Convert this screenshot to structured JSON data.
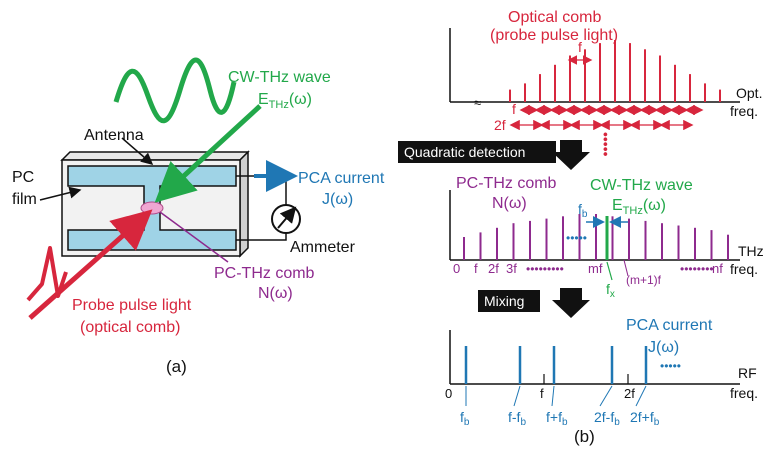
{
  "colors": {
    "optical": "#d7263d",
    "thz": "#22a84a",
    "pca": "#1f77b4",
    "pc_comb": "#8e2a8e",
    "device": "#9fd3e6",
    "gap": "#f0a6d2"
  },
  "panel_a": {
    "label": "(a)",
    "cw_label": "CW-THz wave",
    "e_symbol": "E",
    "e_sub": "THz",
    "e_arg": "(ω)",
    "antenna": "Antenna",
    "pc_film_line1": "PC",
    "pc_film_line2": "film",
    "pca_current": "PCA current",
    "j_omega": "J(ω)",
    "ammeter": "Ammeter",
    "pc_comb": "PC-THz comb",
    "n_omega": "N(ω)",
    "probe_line1": "Probe pulse light",
    "probe_line2": "(optical comb)"
  },
  "panel_b": {
    "label": "(b)",
    "quadratic": "Quadratic detection",
    "mixing": "Mixing",
    "top": {
      "title1": "Optical comb",
      "title2": "(probe pulse light)",
      "f": "f",
      "f_row": "f",
      "two_f": "2f",
      "axis1": "Opt.",
      "axis2": "freq."
    },
    "mid": {
      "title1": "PC-THz comb",
      "title2": "N(ω)",
      "cw1": "CW-THz wave",
      "e_symbol": "E",
      "e_sub": "THz",
      "e_arg": "(ω)",
      "fb": "f",
      "fb_sub": "b",
      "ticks": [
        "0",
        "f",
        "2f",
        "3f"
      ],
      "mf": "mf",
      "m1f": "(m+1)f",
      "nf": "nf",
      "fx": "f",
      "fx_sub": "x",
      "axis1": "THz",
      "axis2": "freq."
    },
    "bot": {
      "title1": "PCA current",
      "title2": "J(ω)",
      "zero": "0",
      "f": "f",
      "two_f": "2f",
      "labels": [
        {
          "main": "f",
          "sub": "b",
          "post": ""
        },
        {
          "main": "f-f",
          "sub": "b",
          "post": ""
        },
        {
          "main": "f+f",
          "sub": "b",
          "post": ""
        },
        {
          "main": "2f-f",
          "sub": "b",
          "post": ""
        },
        {
          "main": "2f+f",
          "sub": "b",
          "post": ""
        }
      ],
      "axis1": "RF",
      "axis2": "freq."
    },
    "spectra": {
      "optical_heights": [
        0.2,
        0.3,
        0.45,
        0.6,
        0.75,
        0.85,
        0.95,
        1.0,
        0.95,
        0.85,
        0.75,
        0.6,
        0.45,
        0.3,
        0.2
      ],
      "pc_comb_heights": [
        0.5,
        0.6,
        0.7,
        0.8,
        0.85,
        0.9,
        0.95,
        1.0,
        1.0,
        0.95,
        0.9,
        0.85,
        0.8,
        0.75,
        0.7,
        0.65,
        0.55
      ]
    }
  }
}
